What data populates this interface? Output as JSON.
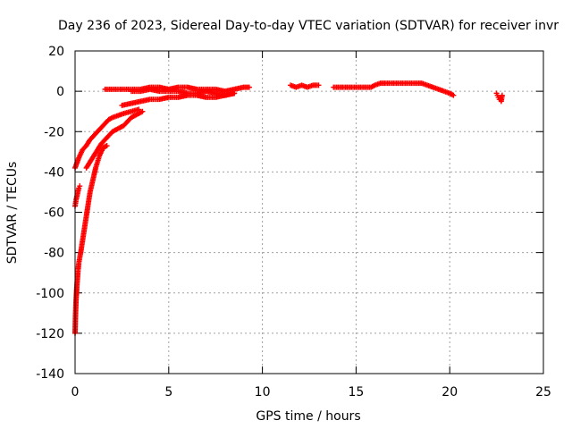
{
  "chart_data": {
    "type": "scatter",
    "title": "Day 236 of 2023, Sidereal Day-to-day VTEC variation (SDTVAR) for receiver invr",
    "xlabel": "GPS time / hours",
    "ylabel": "SDTVAR / TECUs",
    "xlim": [
      0,
      25
    ],
    "ylim": [
      -140,
      20
    ],
    "xticks": [
      0,
      5,
      10,
      15,
      20,
      25
    ],
    "yticks": [
      -140,
      -120,
      -100,
      -80,
      -60,
      -40,
      -20,
      0,
      20
    ],
    "grid": true,
    "marker": "+",
    "color": "#ff0000",
    "series": [
      {
        "segments": [
          [
            [
              0.0,
              -120
            ],
            [
              0.02,
              -112
            ],
            [
              0.05,
              -104
            ],
            [
              0.1,
              -96
            ],
            [
              0.15,
              -90
            ],
            [
              0.2,
              -85
            ],
            [
              0.3,
              -80
            ],
            [
              0.4,
              -74
            ],
            [
              0.5,
              -68
            ],
            [
              0.6,
              -62
            ],
            [
              0.7,
              -56
            ],
            [
              0.8,
              -50
            ],
            [
              0.9,
              -46
            ],
            [
              1.0,
              -42
            ],
            [
              1.1,
              -38
            ],
            [
              1.2,
              -35
            ],
            [
              1.3,
              -32
            ],
            [
              1.4,
              -30
            ],
            [
              1.5,
              -28
            ],
            [
              1.7,
              -27
            ]
          ],
          [
            [
              0.0,
              -57
            ],
            [
              0.05,
              -54
            ],
            [
              0.1,
              -52
            ],
            [
              0.15,
              -50
            ],
            [
              0.2,
              -48
            ],
            [
              0.25,
              -47
            ]
          ],
          [
            [
              0.0,
              -38
            ],
            [
              0.2,
              -33
            ],
            [
              0.4,
              -29
            ],
            [
              0.6,
              -27
            ],
            [
              0.8,
              -24
            ],
            [
              1.0,
              -22
            ],
            [
              1.2,
              -20
            ],
            [
              1.4,
              -18
            ],
            [
              1.6,
              -16
            ],
            [
              1.8,
              -14
            ],
            [
              2.0,
              -13
            ],
            [
              2.3,
              -12
            ],
            [
              2.6,
              -11
            ],
            [
              3.0,
              -10
            ],
            [
              3.4,
              -9
            ]
          ],
          [
            [
              0.6,
              -38
            ],
            [
              0.8,
              -35
            ],
            [
              1.0,
              -32
            ],
            [
              1.2,
              -29
            ],
            [
              1.4,
              -26
            ],
            [
              1.6,
              -24
            ],
            [
              1.8,
              -22
            ],
            [
              2.0,
              -20
            ],
            [
              2.2,
              -19
            ],
            [
              2.4,
              -18
            ],
            [
              2.6,
              -17
            ],
            [
              2.8,
              -15
            ],
            [
              3.0,
              -13
            ],
            [
              3.2,
              -12
            ],
            [
              3.4,
              -11
            ],
            [
              3.6,
              -10
            ]
          ],
          [
            [
              2.5,
              -7
            ],
            [
              3.0,
              -6
            ],
            [
              3.5,
              -5
            ],
            [
              4.0,
              -4
            ],
            [
              4.5,
              -4
            ],
            [
              5.0,
              -3
            ],
            [
              5.5,
              -3
            ],
            [
              6.0,
              -2
            ],
            [
              6.5,
              -2
            ],
            [
              7.0,
              -3
            ],
            [
              7.5,
              -3
            ],
            [
              8.0,
              -2
            ],
            [
              8.5,
              -1
            ]
          ],
          [
            [
              1.6,
              1
            ],
            [
              2.0,
              1
            ],
            [
              2.5,
              1
            ],
            [
              3.0,
              1
            ],
            [
              3.5,
              1
            ],
            [
              4.0,
              2
            ],
            [
              4.5,
              2
            ],
            [
              5.0,
              1
            ],
            [
              5.5,
              2
            ],
            [
              6.0,
              2
            ],
            [
              6.5,
              1
            ],
            [
              7.0,
              1
            ],
            [
              7.5,
              1
            ],
            [
              8.0,
              0
            ],
            [
              8.5,
              1
            ],
            [
              9.0,
              2
            ],
            [
              9.3,
              2
            ]
          ],
          [
            [
              3.0,
              0
            ],
            [
              3.5,
              0
            ],
            [
              4.0,
              1
            ],
            [
              4.5,
              0
            ],
            [
              5.0,
              0
            ],
            [
              5.5,
              0
            ],
            [
              6.0,
              -1
            ],
            [
              6.5,
              -1
            ],
            [
              7.0,
              0
            ],
            [
              7.5,
              -1
            ],
            [
              8.0,
              -2
            ],
            [
              8.5,
              -1
            ]
          ],
          [
            [
              11.5,
              3
            ],
            [
              11.8,
              2
            ],
            [
              12.1,
              3
            ],
            [
              12.4,
              2
            ],
            [
              12.7,
              3
            ],
            [
              13.0,
              3
            ]
          ],
          [
            [
              13.8,
              2
            ],
            [
              14.2,
              2
            ],
            [
              14.6,
              2
            ],
            [
              15.0,
              2
            ],
            [
              15.4,
              2
            ],
            [
              15.8,
              2
            ],
            [
              16.0,
              3
            ],
            [
              16.3,
              4
            ],
            [
              16.6,
              4
            ],
            [
              17.0,
              4
            ],
            [
              17.4,
              4
            ],
            [
              17.8,
              4
            ],
            [
              18.2,
              4
            ],
            [
              18.5,
              4
            ],
            [
              18.8,
              3
            ],
            [
              19.1,
              2
            ],
            [
              19.4,
              1
            ],
            [
              19.7,
              0
            ],
            [
              20.0,
              -1
            ],
            [
              20.2,
              -2
            ]
          ],
          [
            [
              22.5,
              -1
            ],
            [
              22.55,
              -2
            ],
            [
              22.6,
              -3
            ],
            [
              22.65,
              -4
            ],
            [
              22.7,
              -3
            ],
            [
              22.75,
              -5
            ],
            [
              22.8,
              -2
            ]
          ]
        ]
      }
    ]
  }
}
